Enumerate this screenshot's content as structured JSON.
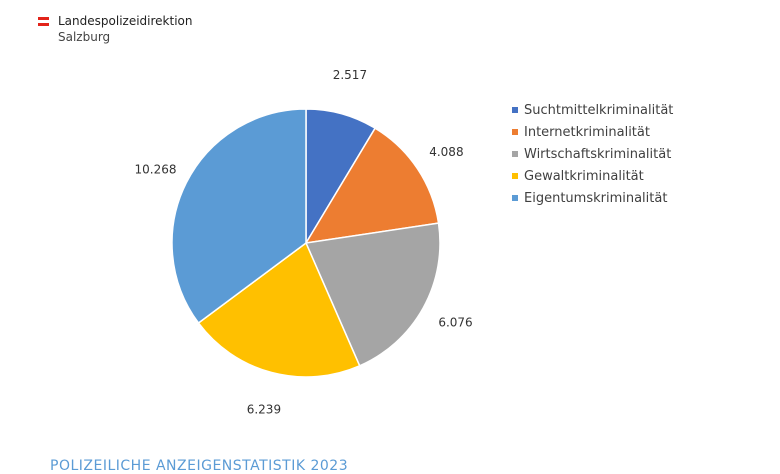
{
  "header": {
    "org_name": "Landespolizeidirektion",
    "org_sub": "Salzburg",
    "flag_colors": [
      "#e2231a",
      "#ffffff",
      "#e2231a"
    ]
  },
  "chart_data": {
    "type": "pie",
    "categories": [
      "Suchtmittelkriminalität",
      "Internetkriminalität",
      "Wirtschaftskriminalität",
      "Gewaltkriminalität",
      "Eigentumskriminalität"
    ],
    "values": [
      2517,
      4088,
      6076,
      6239,
      10268
    ],
    "value_labels": [
      "2.517",
      "4.088",
      "6.076",
      "6.239",
      "10.268"
    ],
    "colors": [
      "#4472c4",
      "#ed7d31",
      "#a5a5a5",
      "#ffc000",
      "#5b9bd5"
    ],
    "start_angle": "12 o'clock",
    "direction": "clockwise",
    "legend_position": "right"
  },
  "footer": {
    "title": "POLIZEILICHE ANZEIGENSTATISTIK 2023"
  }
}
